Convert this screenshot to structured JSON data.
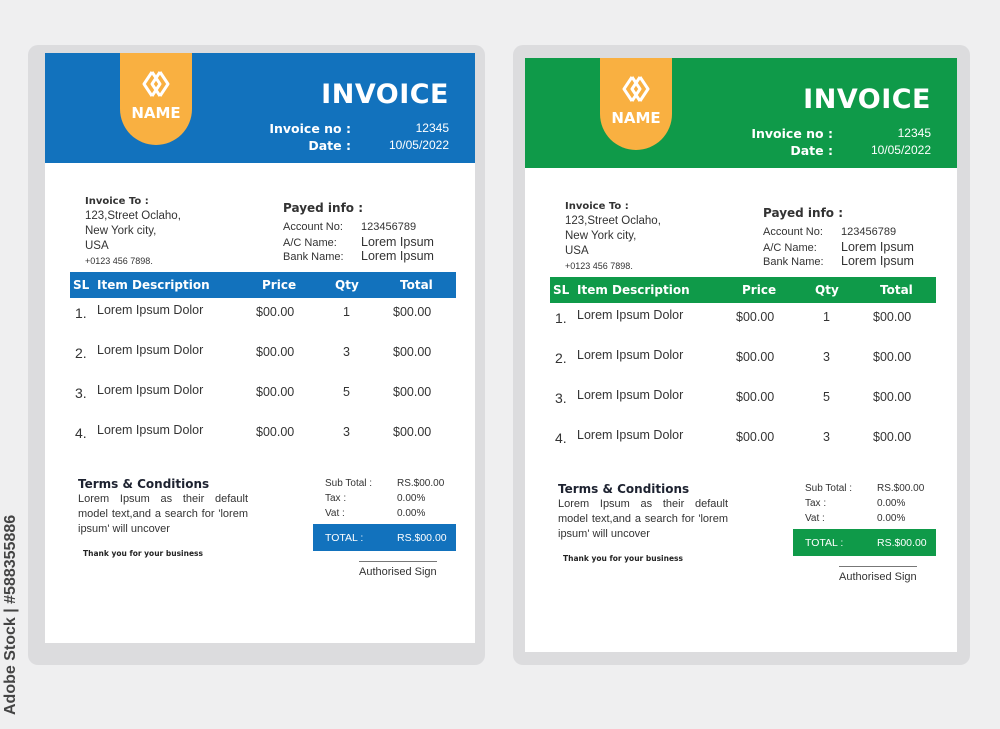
{
  "watermark": "Adobe Stock | #588355886",
  "invoices": [
    {
      "accent": "#1272bd",
      "logo_text": "NAME",
      "title": "INVOICE",
      "invoice_no_label": "Invoice no :",
      "invoice_no": "12345",
      "date_label": "Date :",
      "date": "10/05/2022",
      "invoice_to": {
        "label": "Invoice To :",
        "lines": [
          "123,Street  Oclaho,",
          "New  York  city,",
          "USA"
        ],
        "phone": "+0123  456  7898."
      },
      "payed": {
        "label": "Payed info :",
        "rows": [
          [
            "Account  No:",
            "123456789"
          ],
          [
            "A/C  Name:",
            "Lorem  Ipsum"
          ],
          [
            "Bank  Name:",
            "Lorem  Ipsum"
          ]
        ]
      },
      "columns": [
        "SL",
        "Item Description",
        "Price",
        "Qty",
        "Total"
      ],
      "items": [
        {
          "sl": "1.",
          "desc": "Lorem  Ipsum  Dolor",
          "price": "$00.00",
          "qty": "1",
          "total": "$00.00"
        },
        {
          "sl": "2.",
          "desc": "Lorem  Ipsum  Dolor",
          "price": "$00.00",
          "qty": "3",
          "total": "$00.00"
        },
        {
          "sl": "3.",
          "desc": "Lorem  Ipsum  Dolor",
          "price": "$00.00",
          "qty": "5",
          "total": "$00.00"
        },
        {
          "sl": "4.",
          "desc": "Lorem  Ipsum  Dolor",
          "price": "$00.00",
          "qty": "3",
          "total": "$00.00"
        }
      ],
      "terms_title": "Terms & Conditions",
      "terms_text": "Lorem Ipsum as their default model text,and a search for 'lorem ipsum' will uncover",
      "thanks": "Thank you for your business",
      "subtotal_label": "Sub  Total  :",
      "subtotal": "RS.$00.00",
      "tax_label": "Tax  :",
      "tax": "0.00%",
      "vat_label": "Vat  :",
      "vat": "0.00%",
      "total_label": "TOTAL  :",
      "total": "RS.$00.00",
      "sign": "Authorised  Sign"
    },
    {
      "accent": "#0f9a49",
      "logo_text": "NAME",
      "title": "INVOICE",
      "invoice_no_label": "Invoice no :",
      "invoice_no": "12345",
      "date_label": "Date :",
      "date": "10/05/2022",
      "invoice_to": {
        "label": "Invoice To :",
        "lines": [
          "123,Street  Oclaho,",
          "New  York  city,",
          "USA"
        ],
        "phone": "+0123  456  7898."
      },
      "payed": {
        "label": "Payed info :",
        "rows": [
          [
            "Account  No:",
            "123456789"
          ],
          [
            "A/C  Name:",
            "Lorem  Ipsum"
          ],
          [
            "Bank  Name:",
            "Lorem  Ipsum"
          ]
        ]
      },
      "columns": [
        "SL",
        "Item Description",
        "Price",
        "Qty",
        "Total"
      ],
      "items": [
        {
          "sl": "1.",
          "desc": "Lorem  Ipsum  Dolor",
          "price": "$00.00",
          "qty": "1",
          "total": "$00.00"
        },
        {
          "sl": "2.",
          "desc": "Lorem  Ipsum  Dolor",
          "price": "$00.00",
          "qty": "3",
          "total": "$00.00"
        },
        {
          "sl": "3.",
          "desc": "Lorem  Ipsum  Dolor",
          "price": "$00.00",
          "qty": "5",
          "total": "$00.00"
        },
        {
          "sl": "4.",
          "desc": "Lorem  Ipsum  Dolor",
          "price": "$00.00",
          "qty": "3",
          "total": "$00.00"
        }
      ],
      "terms_title": "Terms & Conditions",
      "terms_text": "Lorem Ipsum as their default model text,and a search for 'lorem ipsum' will uncover",
      "thanks": "Thank you for your business",
      "subtotal_label": "Sub  Total  :",
      "subtotal": "RS.$00.00",
      "tax_label": "Tax  :",
      "tax": "0.00%",
      "vat_label": "Vat  :",
      "vat": "0.00%",
      "total_label": "TOTAL  :",
      "total": "RS.$00.00",
      "sign": "Authorised  Sign"
    }
  ]
}
